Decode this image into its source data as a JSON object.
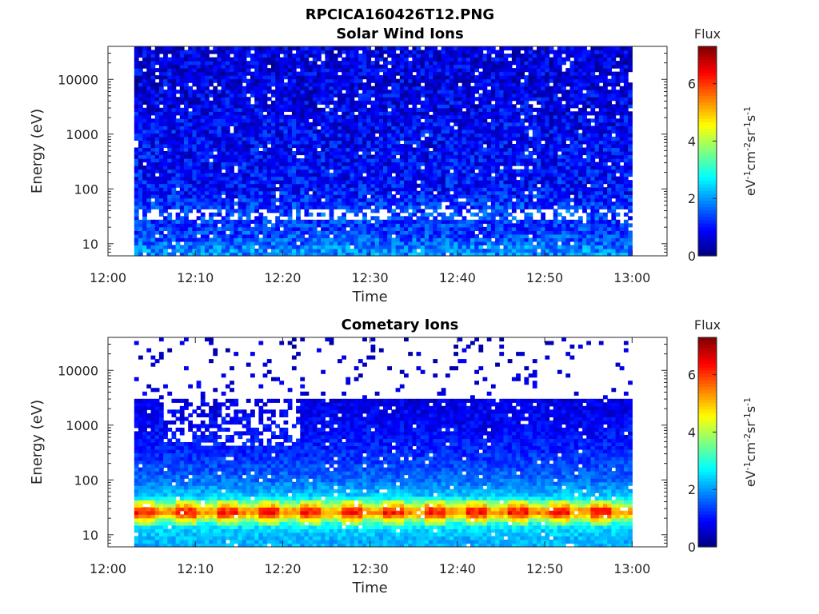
{
  "figure": {
    "title": "RPCICA160426T12.PNG"
  },
  "chart_data": [
    {
      "type": "heatmap",
      "title": "Solar Wind Ions",
      "xlabel": "Time",
      "ylabel": "Energy (eV)",
      "x_range": [
        "12:00",
        "13:04"
      ],
      "x_ticks": [
        "12:00",
        "12:10",
        "12:20",
        "12:30",
        "12:40",
        "12:50",
        "13:00"
      ],
      "y_scale": "log",
      "y_range": [
        6,
        40000
      ],
      "y_ticks": [
        10,
        100,
        1000,
        10000
      ],
      "y_tick_labels": [
        "10",
        "100",
        "1000",
        "10000"
      ],
      "data_span": [
        "12:03",
        "13:00"
      ],
      "colorbar": {
        "label": "Flux",
        "units": "eV-1cm-2sr-1s-1",
        "range": [
          0,
          7.3
        ],
        "ticks": [
          "0",
          "2",
          "4",
          "6"
        ],
        "colormap": "jet"
      },
      "profile_by_energy": [
        {
          "energy": 8,
          "flux": 1.9
        },
        {
          "energy": 12,
          "flux": 1.5
        },
        {
          "energy": 17,
          "flux": 1.3
        },
        {
          "energy": 25,
          "flux": 1.3
        },
        {
          "energy": 35,
          "flux": 1.4
        },
        {
          "energy": 100,
          "flux": 1.0
        },
        {
          "energy": 1000,
          "flux": 0.9
        },
        {
          "energy": 10000,
          "flux": 0.7
        },
        {
          "energy": 35000,
          "flux": 0.7
        }
      ]
    },
    {
      "type": "heatmap",
      "title": "Cometary Ions",
      "xlabel": "Time",
      "ylabel": "Energy (eV)",
      "x_range": [
        "12:00",
        "13:04"
      ],
      "x_ticks": [
        "12:00",
        "12:10",
        "12:20",
        "12:30",
        "12:40",
        "12:50",
        "13:00"
      ],
      "y_scale": "log",
      "y_range": [
        6,
        40000
      ],
      "y_ticks": [
        10,
        100,
        1000,
        10000
      ],
      "y_tick_labels": [
        "10",
        "100",
        "1000",
        "10000"
      ],
      "data_span": [
        "12:03",
        "13:00"
      ],
      "colorbar": {
        "label": "Flux",
        "units": "eV-1cm-2sr-1s-1",
        "range": [
          0,
          7.3
        ],
        "ticks": [
          "0",
          "2",
          "4",
          "6"
        ],
        "colormap": "jet"
      },
      "profile_by_energy": [
        {
          "energy": 8,
          "flux": 2.2
        },
        {
          "energy": 12,
          "flux": 2.4
        },
        {
          "energy": 17,
          "flux": 3.0
        },
        {
          "energy": 22,
          "flux": 4.8
        },
        {
          "energy": 27,
          "flux": 5.6
        },
        {
          "energy": 35,
          "flux": 4.0
        },
        {
          "energy": 50,
          "flux": 2.4
        },
        {
          "energy": 100,
          "flux": 1.7
        },
        {
          "energy": 300,
          "flux": 1.2
        },
        {
          "energy": 1000,
          "flux": 0.9
        },
        {
          "energy": 3000,
          "flux": 0.7
        },
        {
          "energy": 35000,
          "flux": 0.5
        }
      ]
    }
  ]
}
